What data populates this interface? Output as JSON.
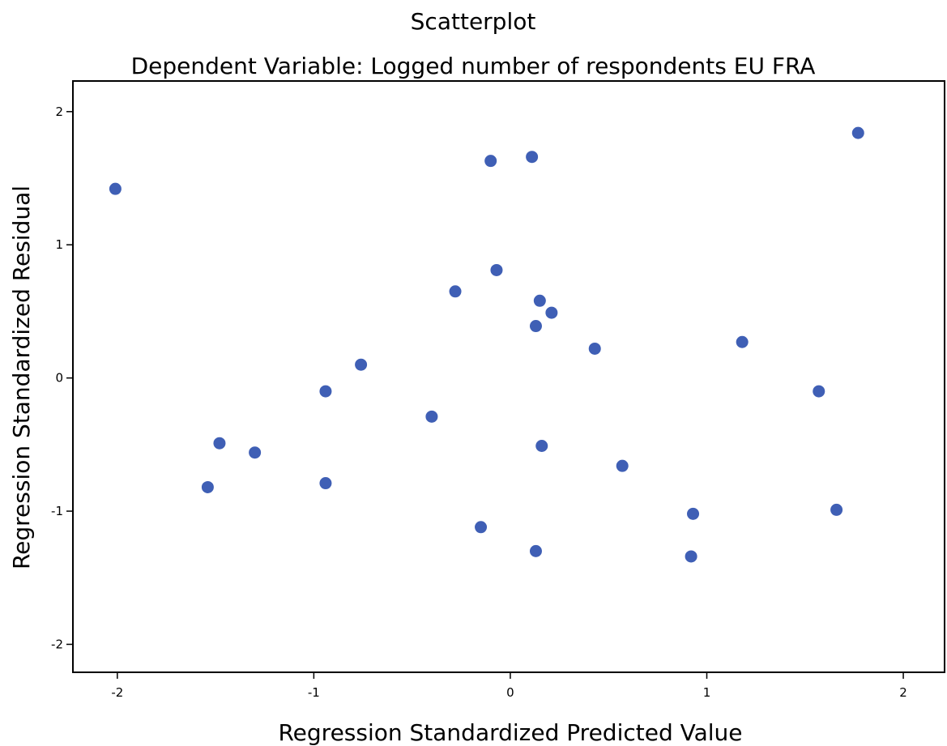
{
  "chart_data": {
    "type": "scatter",
    "title": "Scatterplot",
    "subtitle": "Dependent Variable: Logged number of respondents EU FRA",
    "x_label": "Regression Standardized Predicted Value",
    "y_label": "Regression Standardized Residual",
    "color": "#3f5fb5",
    "xlim": [
      -2.226,
      2.21
    ],
    "ylim": [
      -2.21,
      2.23
    ],
    "xticks": [
      -2,
      -1,
      0,
      1,
      2
    ],
    "yticks": [
      -2,
      -1,
      0,
      1,
      2
    ],
    "series": [
      {
        "name": null,
        "color": "#3f5fb5",
        "x": [
          -2.01,
          -0.1,
          0.11,
          1.77,
          -0.07,
          -0.28,
          0.15,
          0.21,
          0.13,
          0.43,
          1.18,
          -0.76,
          -0.94,
          1.57,
          -0.4,
          -1.48,
          -1.3,
          0.16,
          0.57,
          -1.54,
          -0.94,
          0.93,
          1.66,
          -0.15,
          0.13,
          0.92
        ],
        "values": [
          1.42,
          1.63,
          1.66,
          1.84,
          0.81,
          0.65,
          0.58,
          0.49,
          0.39,
          0.22,
          0.27,
          0.1,
          -0.1,
          -0.1,
          -0.29,
          -0.49,
          -0.56,
          -0.51,
          -0.66,
          -0.82,
          -0.79,
          -1.02,
          -0.99,
          -1.12,
          -1.3,
          -1.34
        ]
      }
    ]
  }
}
